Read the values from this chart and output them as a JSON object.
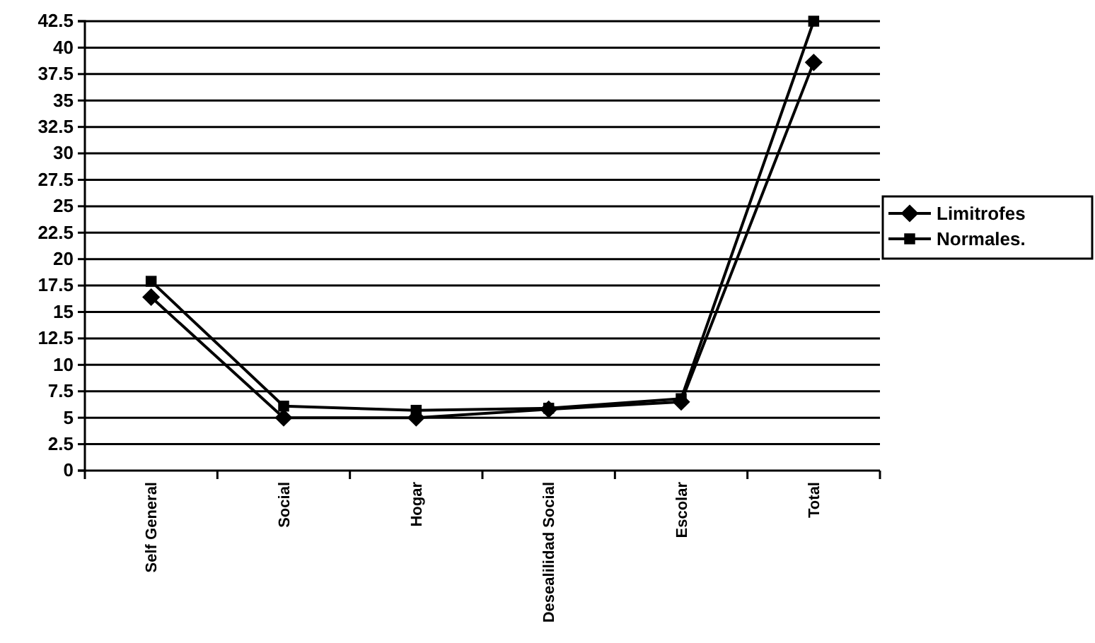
{
  "chart_data": {
    "type": "line",
    "categories": [
      "Self General",
      "Social",
      "Hogar",
      "Desealilidad Social",
      "Escolar",
      "Total"
    ],
    "series": [
      {
        "name": "Limitrofes",
        "color": "#000000",
        "marker": "diamond",
        "values": [
          16.4,
          5.0,
          5.0,
          5.8,
          6.5,
          38.6
        ]
      },
      {
        "name": "Normales.",
        "color": "#000000",
        "marker": "square",
        "values": [
          17.9,
          6.1,
          5.7,
          5.9,
          6.8,
          42.5
        ]
      }
    ],
    "ylim": [
      0,
      42.5
    ],
    "yticks": [
      0,
      2.5,
      5,
      7.5,
      10,
      12.5,
      15,
      17.5,
      20,
      22.5,
      25,
      27.5,
      30,
      32.5,
      35,
      37.5,
      40,
      42.5
    ],
    "grid": "y",
    "legend": "right"
  }
}
